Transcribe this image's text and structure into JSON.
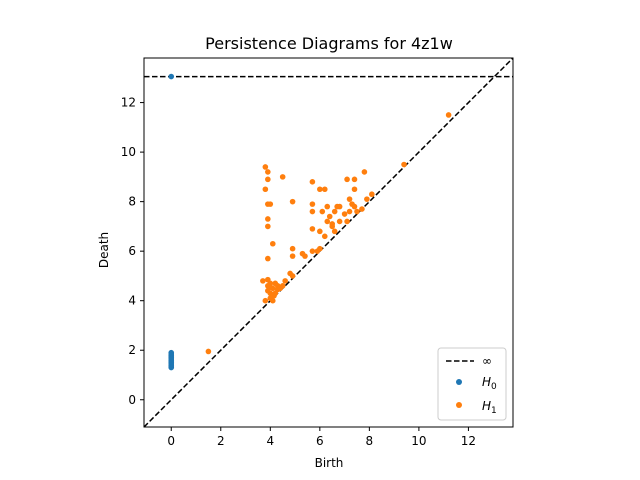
{
  "chart_data": {
    "type": "scatter",
    "title": "Persistence Diagrams for 4z1w",
    "xlabel": "Birth",
    "ylabel": "Death",
    "xlim": [
      -1.1,
      13.8
    ],
    "ylim": [
      -1.1,
      13.8
    ],
    "xticks": [
      0,
      2,
      4,
      6,
      8,
      10,
      12
    ],
    "yticks": [
      0,
      2,
      4,
      6,
      8,
      10,
      12
    ],
    "infinity_line_y": 13.05,
    "legend_position": "lower-right",
    "legend": {
      "infinity_label": "∞",
      "h0_label": "H",
      "h0_sub": "0",
      "h1_label": "H",
      "h1_sub": "1"
    },
    "colors": {
      "H0": "#1f77b4",
      "H1": "#ff7f0e",
      "line": "#000000"
    },
    "series": [
      {
        "key": "H0",
        "points": [
          [
            0,
            13.05
          ],
          [
            0,
            1.3
          ],
          [
            0,
            1.35
          ],
          [
            0,
            1.4
          ],
          [
            0,
            1.45
          ],
          [
            0,
            1.5
          ],
          [
            0,
            1.55
          ],
          [
            0,
            1.6
          ],
          [
            0,
            1.65
          ],
          [
            0,
            1.7
          ],
          [
            0,
            1.75
          ],
          [
            0,
            1.8
          ],
          [
            0,
            1.85
          ],
          [
            0,
            1.9
          ]
        ]
      },
      {
        "key": "H1",
        "points": [
          [
            1.5,
            1.95
          ],
          [
            11.2,
            11.5
          ],
          [
            9.4,
            9.5
          ],
          [
            7.8,
            9.2
          ],
          [
            7.4,
            8.9
          ],
          [
            7.1,
            8.9
          ],
          [
            7.4,
            8.5
          ],
          [
            6.2,
            8.5
          ],
          [
            6.0,
            8.5
          ],
          [
            5.7,
            8.8
          ],
          [
            4.5,
            9.0
          ],
          [
            3.9,
            9.2
          ],
          [
            3.8,
            9.4
          ],
          [
            3.9,
            8.9
          ],
          [
            3.8,
            8.5
          ],
          [
            3.9,
            7.9
          ],
          [
            4.0,
            7.9
          ],
          [
            4.9,
            8.0
          ],
          [
            3.9,
            7.3
          ],
          [
            3.9,
            7.0
          ],
          [
            5.7,
            7.9
          ],
          [
            5.7,
            7.6
          ],
          [
            6.1,
            7.6
          ],
          [
            6.3,
            7.8
          ],
          [
            6.4,
            7.4
          ],
          [
            6.6,
            7.6
          ],
          [
            6.7,
            7.8
          ],
          [
            6.8,
            7.8
          ],
          [
            7.0,
            7.5
          ],
          [
            7.2,
            7.6
          ],
          [
            7.3,
            7.9
          ],
          [
            7.4,
            7.8
          ],
          [
            7.5,
            7.6
          ],
          [
            7.7,
            7.7
          ],
          [
            7.9,
            8.1
          ],
          [
            8.1,
            8.3
          ],
          [
            7.2,
            8.1
          ],
          [
            6.3,
            7.2
          ],
          [
            6.5,
            7.1
          ],
          [
            6.8,
            7.2
          ],
          [
            7.1,
            7.2
          ],
          [
            6.5,
            7.0
          ],
          [
            5.7,
            6.9
          ],
          [
            6.0,
            6.8
          ],
          [
            6.2,
            6.6
          ],
          [
            6.6,
            6.8
          ],
          [
            4.1,
            6.3
          ],
          [
            4.9,
            6.1
          ],
          [
            4.9,
            5.8
          ],
          [
            5.3,
            5.9
          ],
          [
            5.4,
            5.8
          ],
          [
            5.7,
            6.0
          ],
          [
            6.0,
            6.1
          ],
          [
            5.9,
            6.0
          ],
          [
            3.9,
            5.7
          ],
          [
            4.8,
            5.1
          ],
          [
            4.9,
            5.0
          ],
          [
            3.7,
            4.8
          ],
          [
            3.9,
            4.85
          ],
          [
            4.0,
            4.7
          ],
          [
            4.2,
            4.7
          ],
          [
            4.3,
            4.6
          ],
          [
            4.1,
            4.5
          ],
          [
            3.9,
            4.4
          ],
          [
            4.0,
            4.3
          ],
          [
            4.2,
            4.3
          ],
          [
            4.0,
            4.1
          ],
          [
            3.8,
            4.0
          ],
          [
            4.1,
            4.0
          ],
          [
            4.5,
            4.6
          ],
          [
            4.6,
            4.8
          ],
          [
            4.4,
            4.5
          ],
          [
            3.9,
            4.6
          ],
          [
            4.0,
            4.55
          ],
          [
            4.15,
            4.2
          ],
          [
            4.3,
            4.45
          ]
        ]
      }
    ]
  }
}
